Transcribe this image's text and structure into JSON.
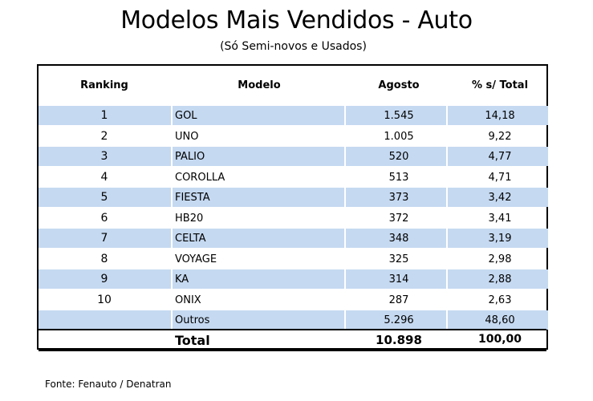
{
  "title": "Modelos Mais Vendidos - Auto",
  "subtitle": "(Só Semi-novos e Usados)",
  "table": {
    "headers": {
      "ranking": "Ranking",
      "modelo": "Modelo",
      "agosto": "Agosto",
      "pct": "% s/ Total"
    },
    "rows": [
      {
        "rank": "1",
        "modelo": "GOL",
        "agosto": "1.545",
        "pct": "14,18"
      },
      {
        "rank": "2",
        "modelo": "UNO",
        "agosto": "1.005",
        "pct": "9,22"
      },
      {
        "rank": "3",
        "modelo": "PALIO",
        "agosto": "520",
        "pct": "4,77"
      },
      {
        "rank": "4",
        "modelo": "COROLLA",
        "agosto": "513",
        "pct": "4,71"
      },
      {
        "rank": "5",
        "modelo": "FIESTA",
        "agosto": "373",
        "pct": "3,42"
      },
      {
        "rank": "6",
        "modelo": "HB20",
        "agosto": "372",
        "pct": "3,41"
      },
      {
        "rank": "7",
        "modelo": "CELTA",
        "agosto": "348",
        "pct": "3,19"
      },
      {
        "rank": "8",
        "modelo": "VOYAGE",
        "agosto": "325",
        "pct": "2,98"
      },
      {
        "rank": "9",
        "modelo": "KA",
        "agosto": "314",
        "pct": "2,88"
      },
      {
        "rank": "10",
        "modelo": "ONIX",
        "agosto": "287",
        "pct": "2,63"
      },
      {
        "rank": "",
        "modelo": "Outros",
        "agosto": "5.296",
        "pct": "48,60"
      }
    ],
    "total": {
      "label": "Total",
      "agosto": "10.898",
      "pct": "100,00"
    }
  },
  "footer": "Fonte: Fenauto / Denatran",
  "colors": {
    "row_shade": "#c5d9f1",
    "border": "#000000"
  }
}
